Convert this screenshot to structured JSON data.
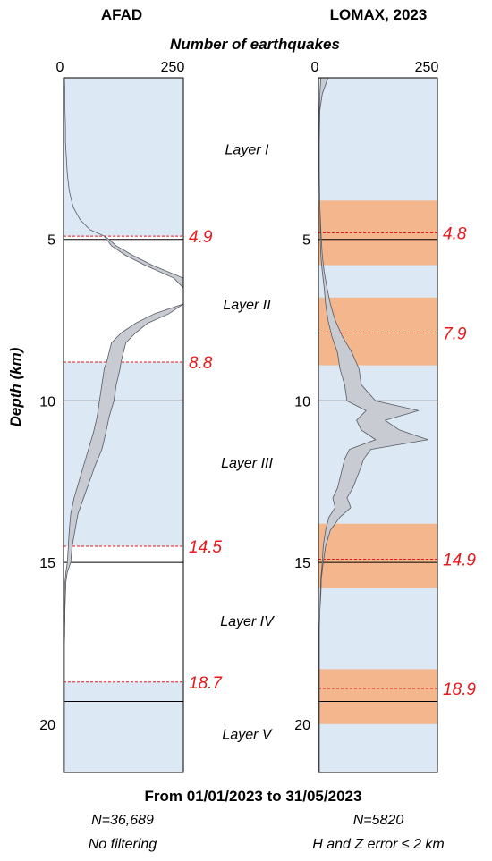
{
  "chart_data": {
    "type": "area",
    "common_x_label": "Number of earthquakes",
    "y_label": "Depth (km)",
    "x_range": [
      0,
      250
    ],
    "x_ticks": [
      "0",
      "250"
    ],
    "y_range": [
      0,
      21.5
    ],
    "y_ticks": [
      "5",
      "10",
      "15",
      "20"
    ],
    "layer_labels": [
      {
        "text": "Layer I",
        "depth": 2.2
      },
      {
        "text": "Layer II",
        "depth": 7.0
      },
      {
        "text": "Layer III",
        "depth": 11.9
      },
      {
        "text": "Layer IV",
        "depth": 16.8
      },
      {
        "text": "Layer V",
        "depth": 20.3
      }
    ],
    "footer": {
      "period": "From 01/01/2023 to 31/05/2023",
      "left_n": "N=36,689",
      "left_note": "No filtering",
      "right_n": "N=5820",
      "right_note": "H and Z error ≤ 2 km"
    },
    "colors": {
      "blue_band": "#dde8f5",
      "orange_band": "#f3b68d",
      "dist_fill": "#c8ccd2",
      "dist_stroke": "#555a61",
      "boundary": "#e8181c"
    },
    "panels": [
      {
        "title": "AFAD",
        "blue_bands": [
          [
            0,
            4.9
          ],
          [
            8.8,
            14.5
          ],
          [
            18.7,
            21.5
          ]
        ],
        "orange_bands": [],
        "solid_lines": [
          5.0,
          10.0,
          15.0,
          19.3
        ],
        "boundaries": [
          {
            "depth": 4.9,
            "label": "4.9"
          },
          {
            "depth": 8.8,
            "label": "8.8"
          },
          {
            "depth": 14.5,
            "label": "14.5"
          },
          {
            "depth": 18.7,
            "label": "18.7"
          }
        ],
        "distribution": {
          "depth": [
            0.0,
            0.5,
            1.0,
            1.5,
            2.0,
            2.5,
            3.0,
            3.5,
            4.0,
            4.4,
            4.7,
            4.9,
            5.0,
            5.2,
            5.5,
            5.8,
            6.2,
            6.5,
            6.7,
            7.0,
            7.3,
            7.6,
            7.9,
            8.2,
            8.5,
            8.8,
            9.0,
            9.5,
            10.0,
            10.5,
            11.0,
            11.5,
            12.0,
            12.5,
            13.0,
            13.5,
            14.0,
            14.5,
            15.0,
            15.3,
            15.6,
            16.0,
            16.5,
            17.0,
            17.5,
            18.0,
            18.5,
            19.0,
            19.5,
            20.0,
            20.5,
            21.0,
            21.5
          ],
          "low": [
            2,
            3,
            3,
            4,
            4,
            6,
            8,
            12,
            20,
            35,
            55,
            85,
            90,
            100,
            130,
            170,
            230,
            250,
            250,
            250,
            190,
            150,
            120,
            100,
            95,
            90,
            85,
            80,
            75,
            70,
            62,
            52,
            42,
            32,
            22,
            15,
            12,
            10,
            8,
            5,
            3,
            3,
            2,
            3,
            2,
            2,
            2,
            2,
            2,
            2,
            2,
            2,
            2
          ],
          "high": [
            2,
            3,
            3,
            4,
            4,
            6,
            8,
            12,
            20,
            35,
            55,
            85,
            95,
            110,
            145,
            185,
            250,
            250,
            250,
            250,
            220,
            175,
            150,
            130,
            125,
            120,
            118,
            110,
            105,
            95,
            88,
            80,
            66,
            54,
            42,
            30,
            24,
            18,
            15,
            8,
            5,
            4,
            3,
            3,
            2,
            2,
            2,
            2,
            2,
            2,
            2,
            2,
            2
          ]
        }
      },
      {
        "title": "LOMAX, 2023",
        "blue_bands": [
          [
            0,
            21.5
          ]
        ],
        "orange_bands": [
          [
            3.8,
            5.8
          ],
          [
            6.8,
            8.9
          ],
          [
            13.8,
            15.8
          ],
          [
            18.3,
            20.0
          ]
        ],
        "solid_lines": [
          5.0,
          10.0,
          15.0,
          19.3
        ],
        "boundaries": [
          {
            "depth": 4.8,
            "label": "4.8"
          },
          {
            "depth": 7.9,
            "label": "7.9"
          },
          {
            "depth": 14.9,
            "label": "14.9"
          },
          {
            "depth": 18.9,
            "label": "18.9"
          }
        ],
        "distribution": {
          "depth": [
            0.0,
            0.5,
            1.0,
            2.0,
            3.0,
            4.0,
            5.0,
            5.5,
            6.0,
            6.5,
            7.0,
            7.5,
            8.0,
            8.5,
            9.0,
            9.5,
            10.0,
            10.3,
            10.6,
            10.9,
            11.2,
            11.5,
            11.8,
            12.1,
            12.4,
            12.7,
            13.0,
            13.3,
            13.6,
            14.0,
            14.5,
            15.0,
            15.5,
            16.0,
            16.5,
            17.0,
            18.0,
            19.0,
            20.0,
            21.0,
            21.5
          ],
          "low": [
            5,
            3,
            2,
            2,
            2,
            3,
            4,
            5,
            8,
            12,
            15,
            20,
            28,
            40,
            45,
            55,
            60,
            100,
            80,
            90,
            120,
            65,
            55,
            50,
            45,
            40,
            30,
            35,
            22,
            15,
            10,
            8,
            5,
            4,
            3,
            2,
            2,
            2,
            2,
            2,
            2
          ],
          "high": [
            20,
            8,
            3,
            2,
            2,
            3,
            6,
            8,
            12,
            18,
            25,
            35,
            50,
            70,
            85,
            90,
            120,
            210,
            140,
            170,
            230,
            110,
            95,
            88,
            80,
            72,
            60,
            68,
            45,
            25,
            15,
            10,
            6,
            5,
            3,
            2,
            2,
            2,
            2,
            2,
            2
          ]
        }
      }
    ]
  }
}
